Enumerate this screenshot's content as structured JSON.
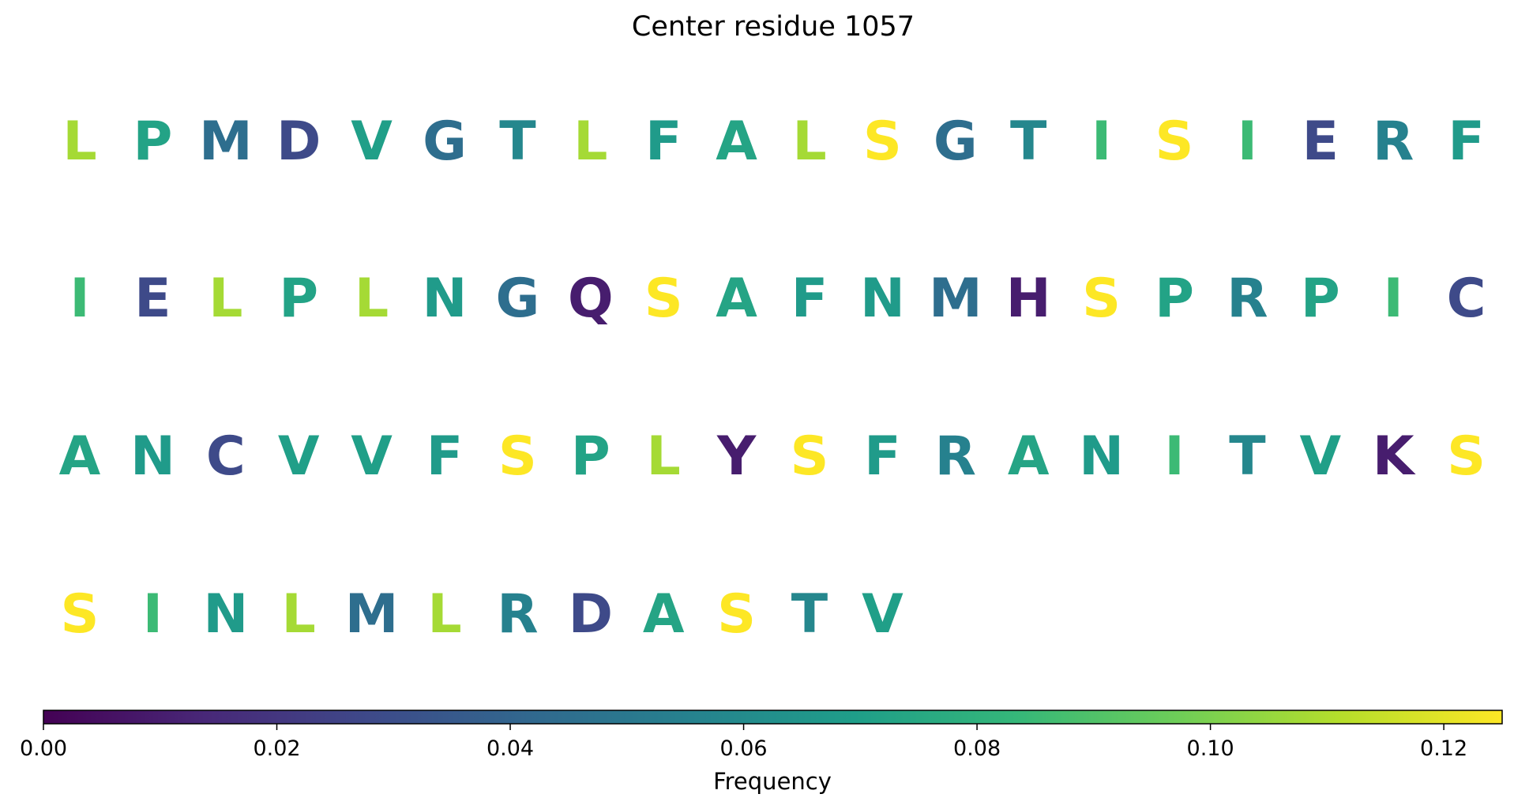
{
  "chart_data": {
    "type": "heatmap",
    "title": "Center residue 1057",
    "colorbar": {
      "label": "Frequency",
      "range": [
        0.0,
        0.125
      ],
      "colormap": "viridis",
      "ticks": [
        {
          "value": 0.0,
          "label": "0.00"
        },
        {
          "value": 0.02,
          "label": "0.02"
        },
        {
          "value": 0.04,
          "label": "0.04"
        },
        {
          "value": 0.06,
          "label": "0.06"
        },
        {
          "value": 0.08,
          "label": "0.08"
        },
        {
          "value": 0.1,
          "label": "0.10"
        },
        {
          "value": 0.12,
          "label": "0.12"
        }
      ]
    },
    "rows": [
      [
        {
          "letter": "L",
          "value": 0.108
        },
        {
          "letter": "P",
          "value": 0.072
        },
        {
          "letter": "M",
          "value": 0.045
        },
        {
          "letter": "D",
          "value": 0.028
        },
        {
          "letter": "V",
          "value": 0.07
        },
        {
          "letter": "G",
          "value": 0.045
        },
        {
          "letter": "T",
          "value": 0.058
        },
        {
          "letter": "L",
          "value": 0.108
        },
        {
          "letter": "F",
          "value": 0.068
        },
        {
          "letter": "A",
          "value": 0.073
        },
        {
          "letter": "L",
          "value": 0.108
        },
        {
          "letter": "S",
          "value": 0.125
        },
        {
          "letter": "G",
          "value": 0.045
        },
        {
          "letter": "T",
          "value": 0.058
        },
        {
          "letter": "I",
          "value": 0.085
        },
        {
          "letter": "S",
          "value": 0.125
        },
        {
          "letter": "I",
          "value": 0.085
        },
        {
          "letter": "E",
          "value": 0.028
        },
        {
          "letter": "R",
          "value": 0.055
        },
        {
          "letter": "F",
          "value": 0.068
        }
      ],
      [
        {
          "letter": "I",
          "value": 0.085
        },
        {
          "letter": "E",
          "value": 0.028
        },
        {
          "letter": "L",
          "value": 0.108
        },
        {
          "letter": "P",
          "value": 0.072
        },
        {
          "letter": "L",
          "value": 0.108
        },
        {
          "letter": "N",
          "value": 0.068
        },
        {
          "letter": "G",
          "value": 0.045
        },
        {
          "letter": "Q",
          "value": 0.01
        },
        {
          "letter": "S",
          "value": 0.125
        },
        {
          "letter": "A",
          "value": 0.073
        },
        {
          "letter": "F",
          "value": 0.068
        },
        {
          "letter": "N",
          "value": 0.068
        },
        {
          "letter": "M",
          "value": 0.045
        },
        {
          "letter": "H",
          "value": 0.01
        },
        {
          "letter": "S",
          "value": 0.125
        },
        {
          "letter": "P",
          "value": 0.072
        },
        {
          "letter": "R",
          "value": 0.055
        },
        {
          "letter": "P",
          "value": 0.072
        },
        {
          "letter": "I",
          "value": 0.085
        },
        {
          "letter": "C",
          "value": 0.028
        }
      ],
      [
        {
          "letter": "A",
          "value": 0.073
        },
        {
          "letter": "N",
          "value": 0.068
        },
        {
          "letter": "C",
          "value": 0.028
        },
        {
          "letter": "V",
          "value": 0.07
        },
        {
          "letter": "V",
          "value": 0.07
        },
        {
          "letter": "F",
          "value": 0.068
        },
        {
          "letter": "S",
          "value": 0.125
        },
        {
          "letter": "P",
          "value": 0.072
        },
        {
          "letter": "L",
          "value": 0.108
        },
        {
          "letter": "Y",
          "value": 0.01
        },
        {
          "letter": "S",
          "value": 0.125
        },
        {
          "letter": "F",
          "value": 0.068
        },
        {
          "letter": "R",
          "value": 0.055
        },
        {
          "letter": "A",
          "value": 0.073
        },
        {
          "letter": "N",
          "value": 0.068
        },
        {
          "letter": "I",
          "value": 0.085
        },
        {
          "letter": "T",
          "value": 0.058
        },
        {
          "letter": "V",
          "value": 0.07
        },
        {
          "letter": "K",
          "value": 0.01
        },
        {
          "letter": "S",
          "value": 0.125
        }
      ],
      [
        {
          "letter": "S",
          "value": 0.125
        },
        {
          "letter": "I",
          "value": 0.085
        },
        {
          "letter": "N",
          "value": 0.068
        },
        {
          "letter": "L",
          "value": 0.108
        },
        {
          "letter": "M",
          "value": 0.045
        },
        {
          "letter": "L",
          "value": 0.108
        },
        {
          "letter": "R",
          "value": 0.055
        },
        {
          "letter": "D",
          "value": 0.028
        },
        {
          "letter": "A",
          "value": 0.073
        },
        {
          "letter": "S",
          "value": 0.125
        },
        {
          "letter": "T",
          "value": 0.058
        },
        {
          "letter": "V",
          "value": 0.07
        }
      ]
    ]
  }
}
